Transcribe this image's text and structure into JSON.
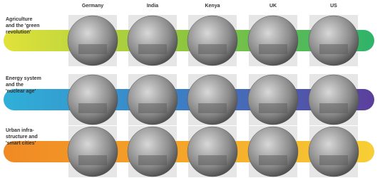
{
  "columns": [
    "Germany",
    "India",
    "Kenya",
    "UK",
    "US"
  ],
  "rows": [
    {
      "label_lines": [
        "Agriculture",
        "and the 'green",
        "revolution'"
      ]
    },
    {
      "label_lines": [
        "Energy system",
        "and the",
        "'nuclear age'"
      ]
    },
    {
      "label_lines": [
        "Urban infra-",
        "structure and",
        "'smart cities'"
      ]
    }
  ]
}
